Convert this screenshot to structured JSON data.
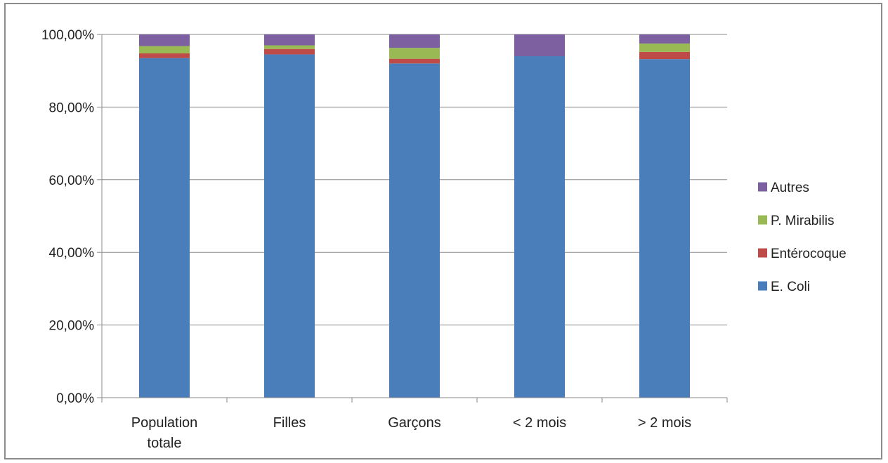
{
  "chart_data": {
    "type": "bar",
    "stacked": true,
    "categories": [
      [
        "Population",
        "totale"
      ],
      [
        "Filles"
      ],
      [
        "Garçons"
      ],
      [
        "< 2 mois"
      ],
      [
        "> 2 mois"
      ]
    ],
    "series": [
      {
        "name": "E. Coli",
        "color": "#4a7ebb",
        "values": [
          93.5,
          94.5,
          92.0,
          94.0,
          93.2
        ]
      },
      {
        "name": "Entérocoque",
        "color": "#be4b48",
        "values": [
          1.3,
          1.5,
          1.3,
          0.0,
          2.0
        ]
      },
      {
        "name": "P. Mirabilis",
        "color": "#98b954",
        "values": [
          2.0,
          1.0,
          3.0,
          0.0,
          2.3
        ]
      },
      {
        "name": "Autres",
        "color": "#7d60a0",
        "values": [
          3.2,
          3.0,
          3.7,
          6.0,
          2.5
        ]
      }
    ],
    "ylim": [
      0,
      100
    ],
    "yticks": [
      "0,00%",
      "20,00%",
      "40,00%",
      "60,00%",
      "80,00%",
      "100,00%"
    ],
    "ytick_values": [
      0,
      20,
      40,
      60,
      80,
      100
    ],
    "grid": true,
    "legend_position": "right",
    "legend_order": [
      "Autres",
      "P. Mirabilis",
      "Entérocoque",
      "E. Coli"
    ]
  }
}
